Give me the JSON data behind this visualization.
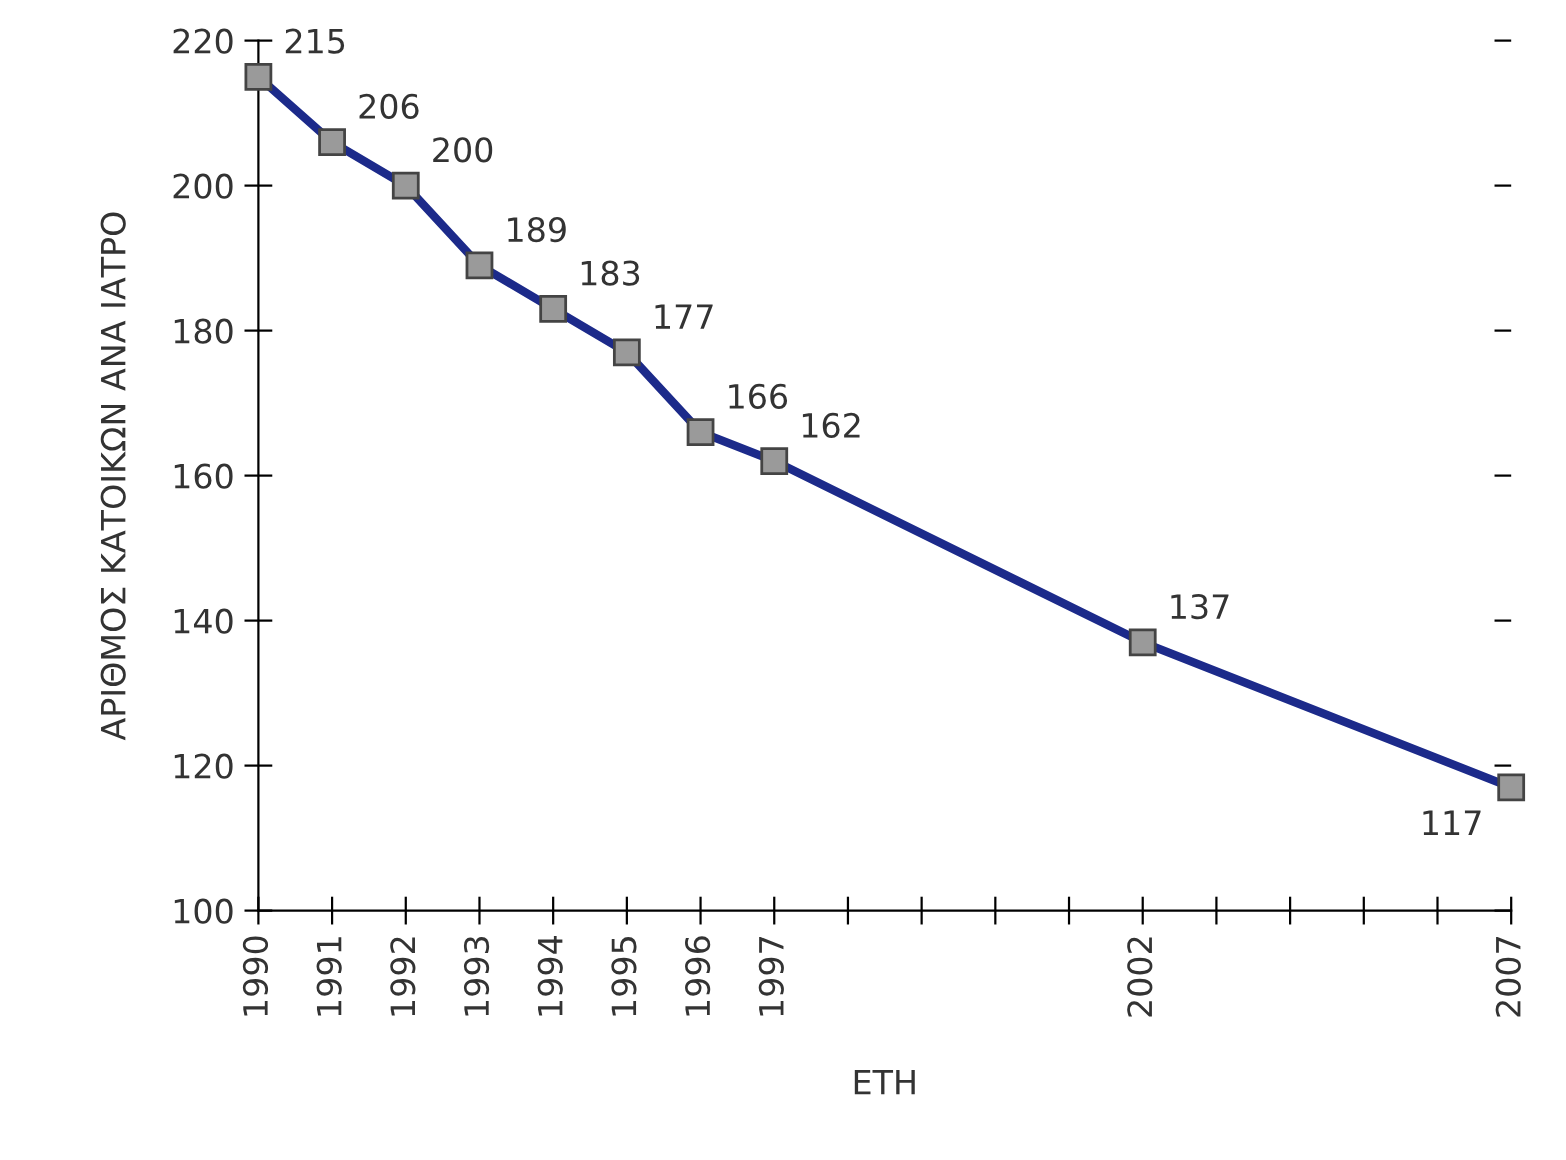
{
  "chart_data": {
    "type": "line",
    "xlabel": "ΕΤΗ",
    "ylabel": "ΑΡΙΘΜΟΣ ΚΑΤΟΙΚΩΝ ΑΝΑ ΙΑΤΡΟ",
    "x": [
      1990,
      1991,
      1992,
      1993,
      1994,
      1995,
      1996,
      1997,
      2002,
      2007
    ],
    "series": [
      {
        "color": "#1c2a8a",
        "values": [
          215,
          206,
          200,
          189,
          183,
          177,
          166,
          162,
          137,
          117
        ]
      }
    ],
    "xlim": [
      1990,
      2007
    ],
    "xticks": [
      1990,
      1991,
      1992,
      1993,
      1994,
      1995,
      1996,
      1997,
      {
        "value": 1998,
        "label": null
      },
      {
        "value": 1999,
        "label": null
      },
      {
        "value": 2000,
        "label": null
      },
      {
        "value": 2001,
        "label": null
      },
      2002,
      {
        "value": 2003,
        "label": null
      },
      {
        "value": 2004,
        "label": null
      },
      {
        "value": 2005,
        "label": null
      },
      {
        "value": 2006,
        "label": null
      },
      2007
    ],
    "ylim": [
      100,
      220
    ],
    "yticks": [
      100,
      120,
      140,
      160,
      180,
      200,
      220
    ],
    "data_labels": true,
    "marker": "square",
    "line_style": "solid",
    "grid": false,
    "legend": false
  }
}
